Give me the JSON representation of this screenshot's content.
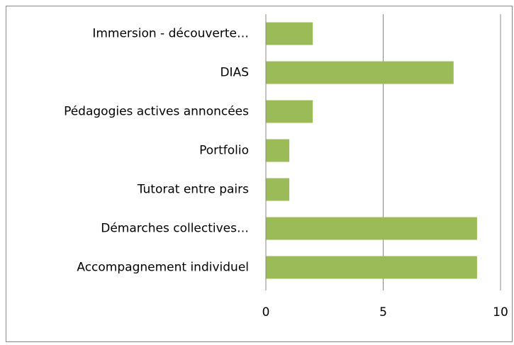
{
  "chart_data": {
    "type": "bar",
    "orientation": "horizontal",
    "categories": [
      "Immersion - découverte…",
      "DIAS",
      "Pédagogies actives annoncées",
      "Portfolio",
      "Tutorat entre pairs",
      "Démarches collectives…",
      "Accompagnement individuel"
    ],
    "values": [
      2,
      8,
      2,
      1,
      1,
      9,
      9
    ],
    "color": "#9bbb59",
    "xlim": [
      0,
      10
    ],
    "xticks": [
      0,
      5,
      10
    ],
    "grid": true
  }
}
